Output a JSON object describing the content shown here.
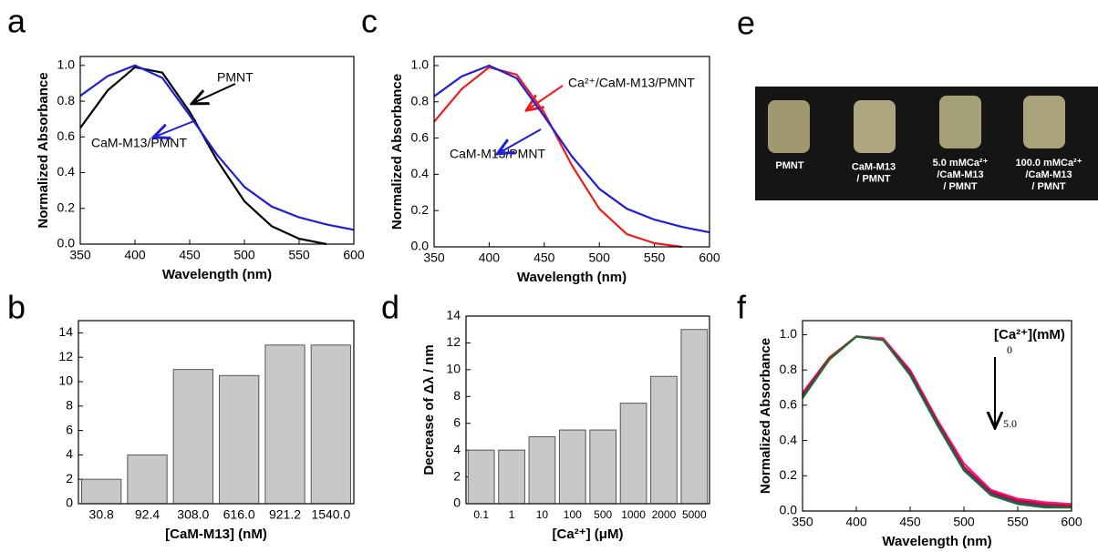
{
  "chart_data": [
    {
      "type": "line",
      "panel": "a",
      "xlabel": "Wavelength (nm)",
      "ylabel": "Normalized Absorbance",
      "x": [
        350,
        375,
        400,
        425,
        450,
        475,
        500,
        525,
        550,
        575,
        600
      ],
      "series": [
        {
          "name": "PMNT",
          "color": "#000000",
          "values": [
            0.65,
            0.86,
            0.99,
            0.96,
            0.74,
            0.47,
            0.24,
            0.1,
            0.03,
            0.0,
            null
          ]
        },
        {
          "name": "CaM-M13/PMNT",
          "color": "#1f1fd6",
          "values": [
            0.83,
            0.94,
            1.0,
            0.93,
            0.72,
            0.5,
            0.32,
            0.21,
            0.15,
            0.11,
            0.08
          ]
        }
      ],
      "xlim": [
        350,
        600
      ],
      "xticks": [
        350,
        400,
        450,
        500,
        550,
        600
      ],
      "ylim": [
        0,
        1.05
      ],
      "yticks": [
        {
          "value": 0,
          "label": "0.0"
        },
        0.2,
        0.4,
        0.6,
        0.8,
        {
          "value": 1,
          "label": "1.0"
        }
      ]
    },
    {
      "type": "bar",
      "panel": "b",
      "xlabel": "[CaM-M13] (nM)",
      "categories": [
        "30.8",
        "92.4",
        "308.0",
        "616.0",
        "921.2",
        "1540.0"
      ],
      "values": [
        2,
        4,
        11,
        10.5,
        13,
        13
      ],
      "color": "#c8c8c8",
      "ylim": [
        0,
        15
      ],
      "yticks": [
        0,
        2,
        4,
        6,
        8,
        10,
        12,
        14
      ]
    },
    {
      "type": "line",
      "panel": "c",
      "xlabel": "Wavelength (nm)",
      "ylabel": "Normalized Absorbance",
      "x": [
        350,
        375,
        400,
        425,
        450,
        475,
        500,
        525,
        550,
        575,
        600
      ],
      "series": [
        {
          "name": "Ca²⁺/CaM-M13/PMNT",
          "color": "#ee1c1c",
          "values": [
            0.69,
            0.87,
            0.99,
            0.95,
            0.74,
            0.45,
            0.21,
            0.07,
            0.02,
            0.0,
            null
          ]
        },
        {
          "name": "CaM-M13/PMNT",
          "color": "#1f1fd6",
          "values": [
            0.83,
            0.94,
            1.0,
            0.93,
            0.72,
            0.5,
            0.32,
            0.21,
            0.15,
            0.11,
            0.08
          ]
        }
      ],
      "xlim": [
        350,
        600
      ],
      "xticks": [
        350,
        400,
        450,
        500,
        550,
        600
      ],
      "ylim": [
        0,
        1.05
      ],
      "yticks": [
        {
          "value": 0,
          "label": "0.0"
        },
        0.2,
        0.4,
        0.6,
        0.8,
        {
          "value": 1,
          "label": "1.0"
        }
      ]
    },
    {
      "type": "bar",
      "panel": "d",
      "xlabel": "[Ca²⁺] (μM)",
      "ylabel": "Decrease of Δλ / nm",
      "categories": [
        "0.1",
        "1",
        "10",
        "100",
        "500",
        "1000",
        "2000",
        "5000"
      ],
      "values": [
        4,
        4,
        5,
        5.5,
        5.5,
        7.5,
        9.5,
        13
      ],
      "color": "#c8c8c8",
      "ylim": [
        0,
        14
      ],
      "yticks": [
        0,
        2,
        4,
        6,
        8,
        10,
        12,
        14
      ]
    },
    {
      "type": "line",
      "panel": "f",
      "xlabel": "Wavelength (nm)",
      "ylabel": "Normalized Absorbance",
      "annotations": [
        "[Ca²⁺](mM)",
        "0",
        "5.0"
      ],
      "x": [
        350,
        375,
        400,
        425,
        450,
        475,
        500,
        525,
        550,
        575,
        600
      ],
      "series": [
        {
          "color": "#ff1493",
          "values": [
            0.67,
            0.87,
            0.99,
            0.98,
            0.8,
            0.52,
            0.27,
            0.12,
            0.07,
            0.05,
            0.04
          ]
        },
        {
          "color": "#d01010",
          "values": [
            0.66,
            0.87,
            0.99,
            0.97,
            0.79,
            0.51,
            0.25,
            0.11,
            0.06,
            0.04,
            0.03
          ]
        },
        {
          "color": "#5a2a8a",
          "values": [
            0.65,
            0.86,
            0.99,
            0.97,
            0.78,
            0.5,
            0.24,
            0.1,
            0.05,
            0.03,
            0.02
          ]
        },
        {
          "color": "#1e6e2e",
          "values": [
            0.64,
            0.86,
            0.99,
            0.97,
            0.77,
            0.49,
            0.23,
            0.09,
            0.04,
            0.02,
            0.02
          ]
        }
      ],
      "xlim": [
        350,
        600
      ],
      "xticks": [
        350,
        400,
        450,
        500,
        550,
        600
      ],
      "ylim": [
        0,
        1.08
      ],
      "yticks": [
        {
          "value": 0,
          "label": "0.0"
        },
        0.2,
        0.4,
        0.6,
        0.8,
        {
          "value": 1,
          "label": "1.0"
        }
      ]
    }
  ],
  "chart_annotations": {
    "a": [
      "PMNT",
      "CaM-M13/PMNT"
    ],
    "c": [
      "Ca²⁺/CaM-M13/PMNT",
      "CaM-M13/PMNT"
    ]
  },
  "photo": {
    "panel": "e",
    "labels": [
      "PMNT",
      "CaM-M13 / PMNT",
      "5.0 mMCa²⁺ /CaM-M13 / PMNT",
      "100.0 mMCa²⁺ /CaM-M13 / PMNT"
    ]
  }
}
